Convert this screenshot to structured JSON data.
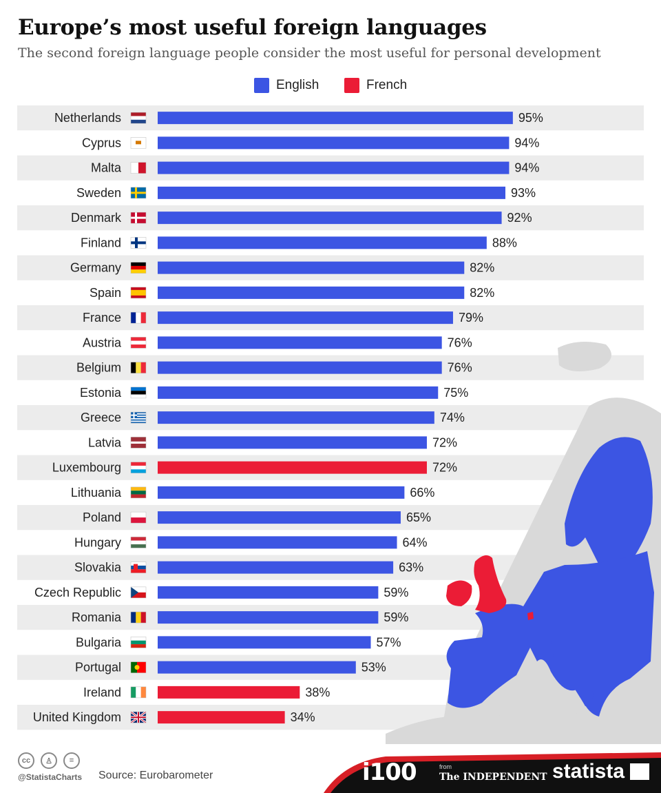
{
  "title": "Europe’s most useful foreign languages",
  "subtitle": "The second foreign language people consider the most useful for personal development",
  "colors": {
    "English": "#3c55e3",
    "French": "#eb1c36",
    "row_band": "#ececec",
    "map_grey": "#d9d9d9",
    "footer_dark": "#101010",
    "footer_red": "#d71f26"
  },
  "chart_data": {
    "type": "bar",
    "orientation": "horizontal",
    "title": "Europe’s most useful foreign languages",
    "subtitle": "The second foreign language people consider the most useful for personal development",
    "legend": {
      "position": "top",
      "entries": [
        "English",
        "French"
      ]
    },
    "value_suffix": "%",
    "xlim": [
      0,
      100
    ],
    "grid": false,
    "categories": [
      "Netherlands",
      "Cyprus",
      "Malta",
      "Sweden",
      "Denmark",
      "Finland",
      "Germany",
      "Spain",
      "France",
      "Austria",
      "Belgium",
      "Estonia",
      "Greece",
      "Latvia",
      "Luxembourg",
      "Lithuania",
      "Poland",
      "Hungary",
      "Slovakia",
      "Czech Republic",
      "Romania",
      "Bulgaria",
      "Portugal",
      "Ireland",
      "United Kingdom"
    ],
    "values": [
      95,
      94,
      94,
      93,
      92,
      88,
      82,
      82,
      79,
      76,
      76,
      75,
      74,
      72,
      72,
      66,
      65,
      64,
      63,
      59,
      59,
      57,
      53,
      38,
      34
    ],
    "language": [
      "English",
      "English",
      "English",
      "English",
      "English",
      "English",
      "English",
      "English",
      "English",
      "English",
      "English",
      "English",
      "English",
      "English",
      "French",
      "English",
      "English",
      "English",
      "English",
      "English",
      "English",
      "English",
      "English",
      "French",
      "French"
    ],
    "flags": [
      "flag-netherlands",
      "flag-cyprus",
      "flag-malta",
      "flag-sweden",
      "flag-denmark",
      "flag-finland",
      "flag-germany",
      "flag-spain",
      "flag-france",
      "flag-austria",
      "flag-belgium",
      "flag-estonia",
      "flag-greece",
      "flag-latvia",
      "flag-luxembourg",
      "flag-lithuania",
      "flag-poland",
      "flag-hungary",
      "flag-slovakia",
      "flag-czech-republic",
      "flag-romania",
      "flag-bulgaria",
      "flag-portugal",
      "flag-ireland",
      "flag-united-kingdom"
    ]
  },
  "footer": {
    "handle": "@StatistaCharts",
    "source": "Source: Eurobarometer",
    "license_icons": [
      "cc-icon",
      "attribution-icon",
      "no-derivatives-icon"
    ],
    "logos": {
      "i100": "i100",
      "from": "from",
      "independent": "The INDEPENDENT",
      "statista": "statista"
    }
  }
}
